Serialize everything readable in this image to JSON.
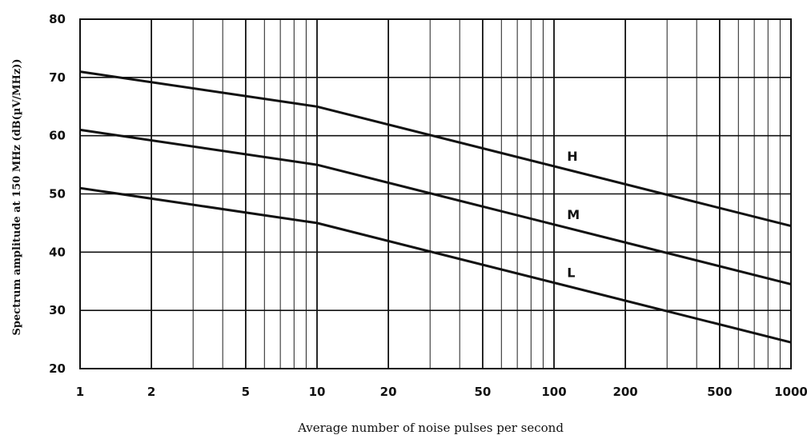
{
  "chart_data": {
    "type": "line",
    "title": "",
    "xlabel": "Average number of noise pulses per second",
    "ylabel": "Spectrum amplitude at 150 MHz (dB(µV/MHz))",
    "x_scale": "log",
    "xlim": [
      1,
      1000
    ],
    "ylim": [
      20,
      80
    ],
    "x_ticks": [
      1,
      2,
      5,
      10,
      20,
      50,
      100,
      200,
      500,
      1000
    ],
    "x_tick_labels": [
      "1",
      "2",
      "5",
      "10",
      "20",
      "50",
      "100",
      "200",
      "500",
      "1000"
    ],
    "y_ticks": [
      20,
      30,
      40,
      50,
      60,
      70,
      80
    ],
    "y_tick_labels": [
      "20",
      "30",
      "40",
      "50",
      "60",
      "70",
      "80"
    ],
    "grid": true,
    "legend": "none",
    "series": [
      {
        "name": "H",
        "x": [
          1,
          10,
          1000
        ],
        "y": [
          71,
          65,
          44.5
        ]
      },
      {
        "name": "M",
        "x": [
          1,
          10,
          1000
        ],
        "y": [
          61,
          55,
          34.5
        ]
      },
      {
        "name": "L",
        "x": [
          1,
          10,
          1000
        ],
        "y": [
          51,
          45,
          24.5
        ]
      }
    ],
    "series_label_x": 110
  }
}
